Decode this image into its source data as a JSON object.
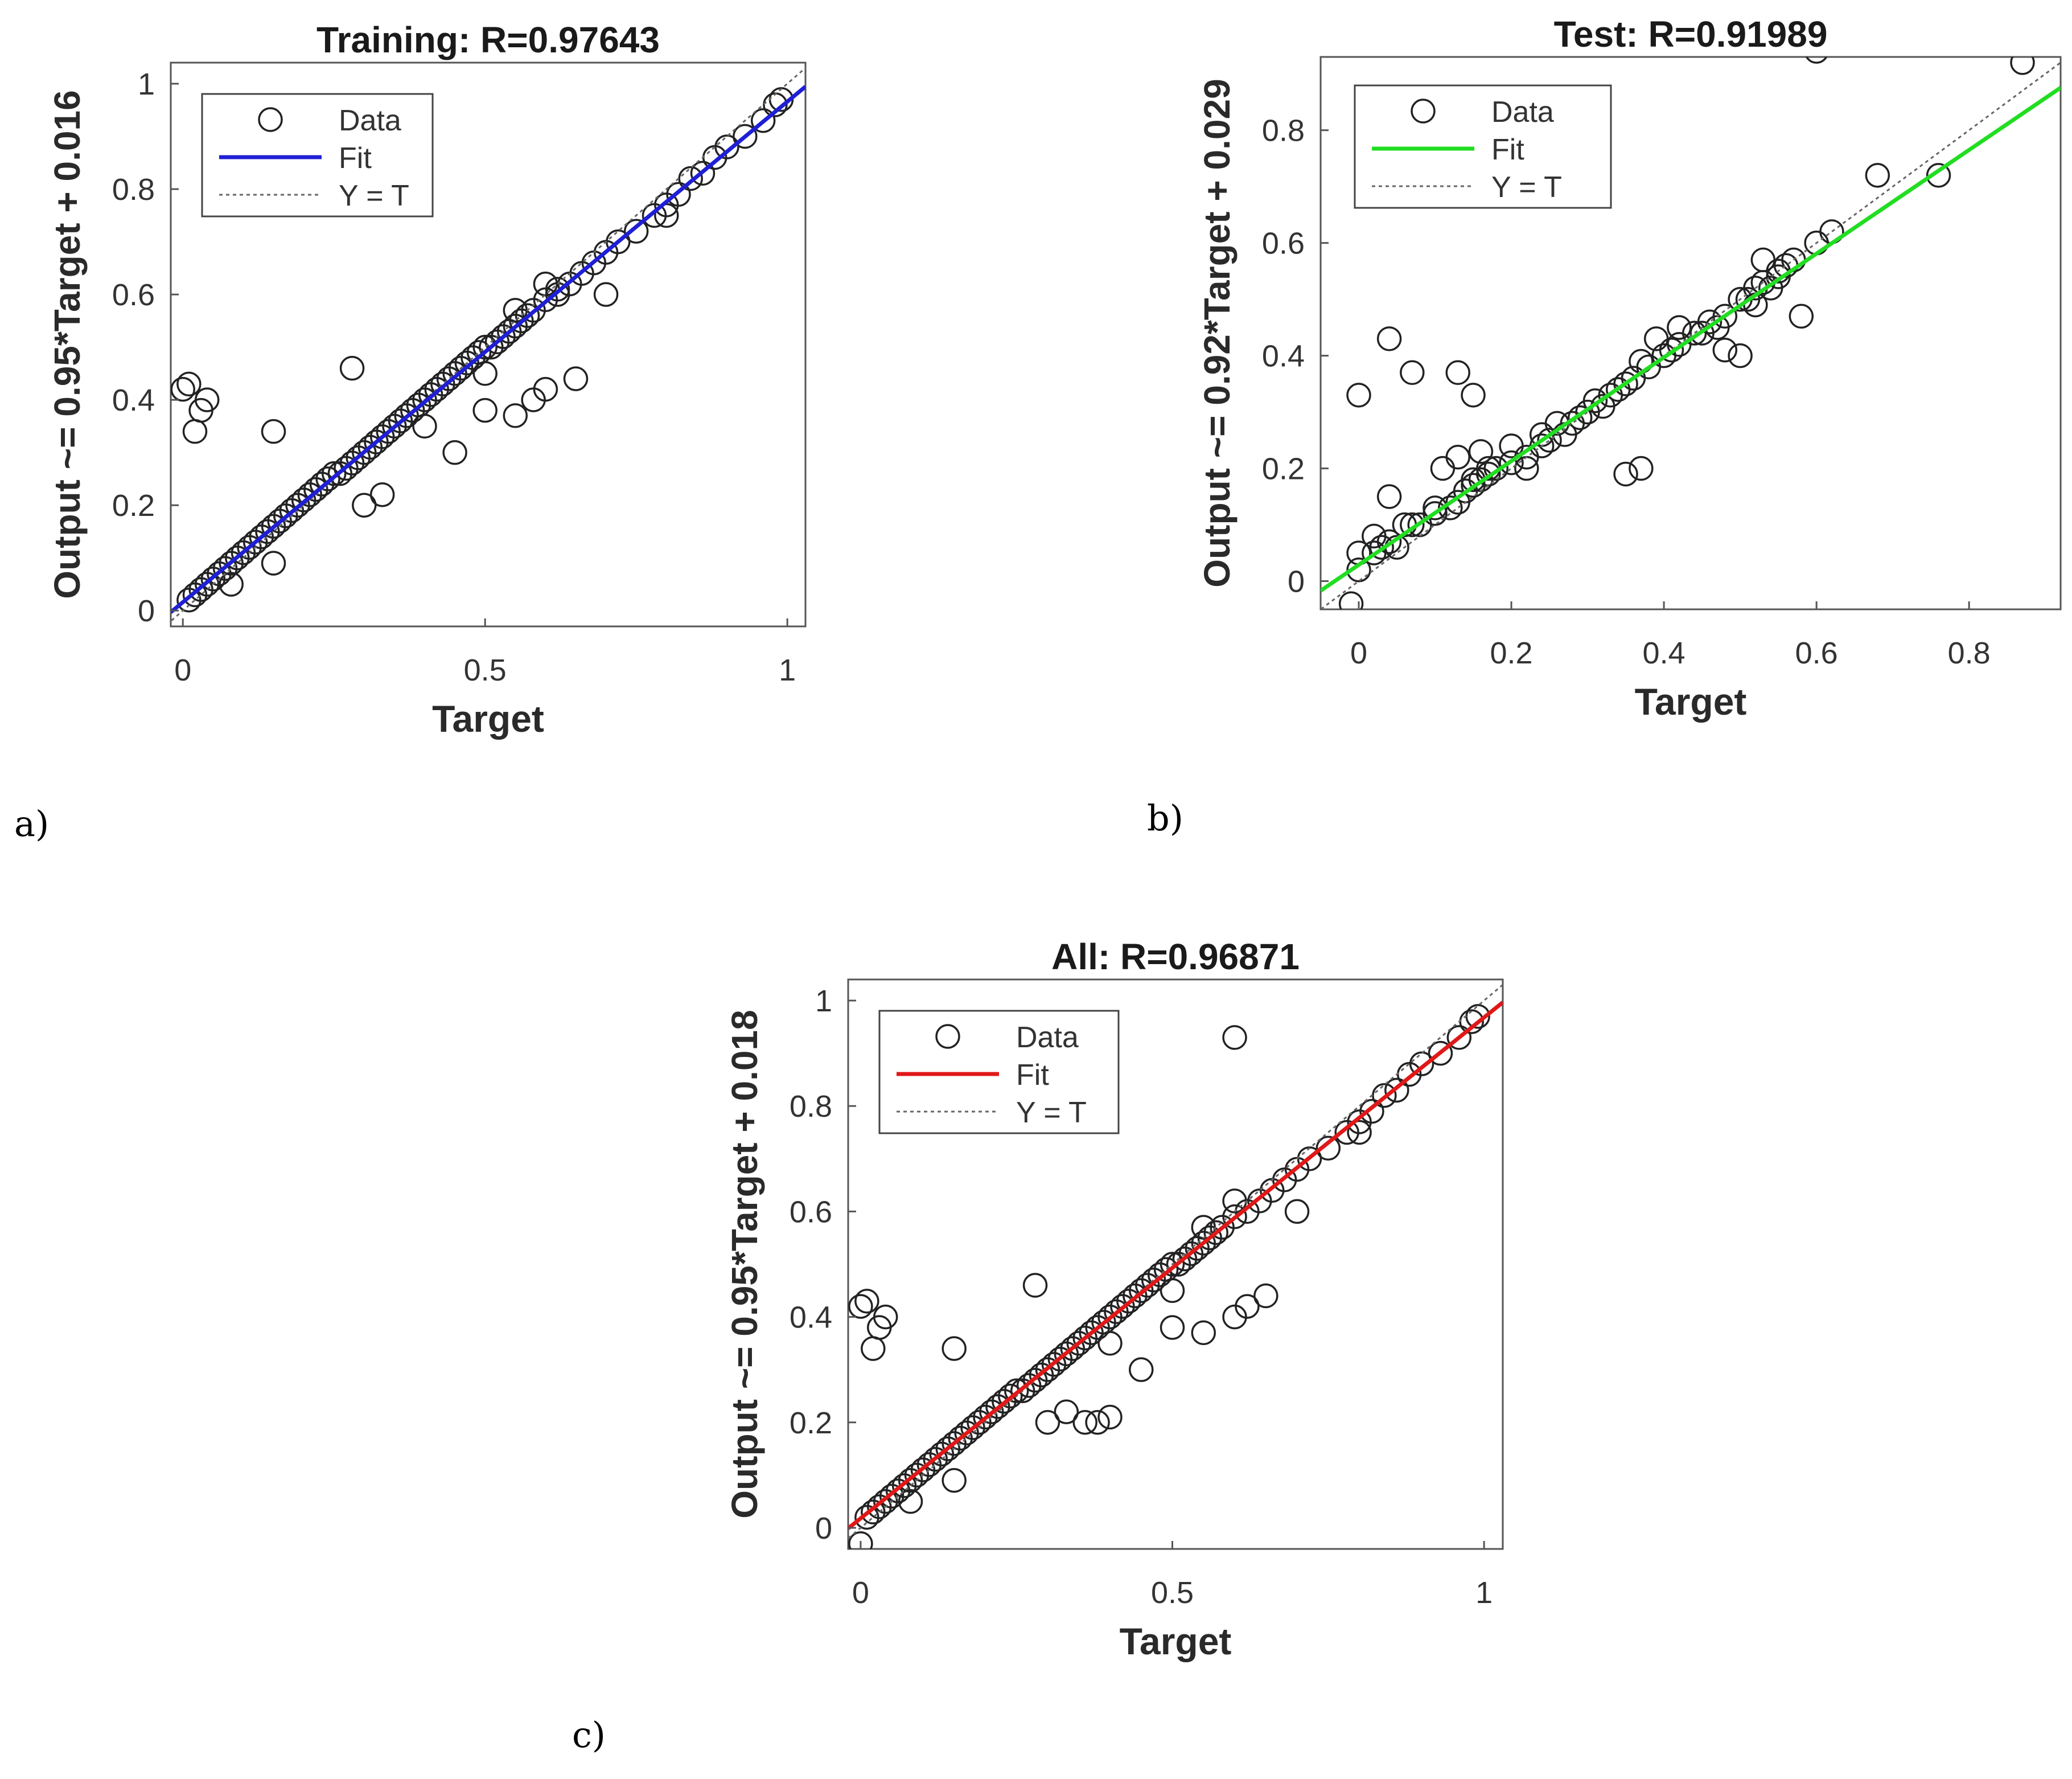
{
  "panel_labels": [
    "a)",
    "b)",
    "c)"
  ],
  "legend_labels": {
    "data": "Data",
    "fit": "Fit",
    "yt": "Y = T"
  },
  "chart_data": [
    {
      "type": "scatter",
      "title": "Training: R=0.97643",
      "xlabel": "Target",
      "ylabel": "Output ~= 0.95*Target + 0.016",
      "xlim": [
        -0.02,
        1.03
      ],
      "ylim": [
        -0.03,
        1.04
      ],
      "xticks": [
        0,
        0.5,
        1
      ],
      "xtick_labels": [
        "0",
        "0.5",
        "1"
      ],
      "yticks": [
        0,
        0.2,
        0.4,
        0.6,
        0.8,
        1
      ],
      "ytick_labels": [
        "0",
        "0.2",
        "0.4",
        "0.6",
        "0.8",
        "1"
      ],
      "fit": {
        "slope": 0.95,
        "intercept": 0.016,
        "color": "#1f1fd6"
      },
      "series": [
        {
          "name": "Data",
          "x": [
            0.01,
            0.02,
            0.03,
            0.04,
            0.05,
            0.06,
            0.07,
            0.08,
            0.09,
            0.1,
            0.11,
            0.12,
            0.13,
            0.14,
            0.15,
            0.16,
            0.17,
            0.18,
            0.19,
            0.2,
            0.21,
            0.22,
            0.23,
            0.24,
            0.25,
            0.26,
            0.27,
            0.28,
            0.29,
            0.3,
            0.31,
            0.32,
            0.33,
            0.34,
            0.35,
            0.36,
            0.37,
            0.38,
            0.39,
            0.4,
            0.41,
            0.42,
            0.43,
            0.44,
            0.45,
            0.46,
            0.47,
            0.48,
            0.49,
            0.5,
            0.51,
            0.52,
            0.53,
            0.54,
            0.55,
            0.56,
            0.57,
            0.58,
            0.6,
            0.62,
            0.64,
            0.66,
            0.68,
            0.7,
            0.72,
            0.75,
            0.78,
            0.8,
            0.82,
            0.84,
            0.86,
            0.88,
            0.9,
            0.93,
            0.96,
            0.98,
            0.99,
            0.0,
            0.01,
            0.02,
            0.03,
            0.04,
            0.15,
            0.28,
            0.33,
            0.45,
            0.5,
            0.55,
            0.58,
            0.6,
            0.62,
            0.65,
            0.7,
            0.8,
            0.08,
            0.15,
            0.3,
            0.4,
            0.5,
            0.55,
            0.6
          ],
          "y": [
            0.02,
            0.03,
            0.04,
            0.05,
            0.06,
            0.07,
            0.08,
            0.09,
            0.1,
            0.11,
            0.12,
            0.13,
            0.14,
            0.15,
            0.16,
            0.17,
            0.18,
            0.19,
            0.2,
            0.21,
            0.22,
            0.23,
            0.24,
            0.25,
            0.26,
            0.26,
            0.27,
            0.28,
            0.29,
            0.3,
            0.31,
            0.32,
            0.33,
            0.34,
            0.35,
            0.36,
            0.37,
            0.38,
            0.39,
            0.4,
            0.41,
            0.42,
            0.43,
            0.44,
            0.45,
            0.46,
            0.47,
            0.48,
            0.49,
            0.5,
            0.5,
            0.51,
            0.52,
            0.53,
            0.54,
            0.55,
            0.56,
            0.57,
            0.59,
            0.6,
            0.62,
            0.64,
            0.66,
            0.68,
            0.7,
            0.72,
            0.75,
            0.77,
            0.79,
            0.82,
            0.83,
            0.86,
            0.88,
            0.9,
            0.93,
            0.96,
            0.97,
            0.42,
            0.43,
            0.34,
            0.38,
            0.4,
            0.34,
            0.46,
            0.22,
            0.3,
            0.38,
            0.37,
            0.4,
            0.42,
            0.61,
            0.44,
            0.6,
            0.75,
            0.05,
            0.09,
            0.2,
            0.35,
            0.45,
            0.57,
            0.62
          ]
        }
      ]
    },
    {
      "type": "scatter",
      "title": "Test: R=0.91989",
      "xlabel": "Target",
      "ylabel": "Output ~= 0.92*Target + 0.029",
      "xlim": [
        -0.05,
        0.92
      ],
      "ylim": [
        -0.05,
        0.93
      ],
      "xticks": [
        0,
        0.2,
        0.4,
        0.6,
        0.8
      ],
      "xtick_labels": [
        "0",
        "0.2",
        "0.4",
        "0.6",
        "0.8"
      ],
      "yticks": [
        0,
        0.2,
        0.4,
        0.6,
        0.8
      ],
      "ytick_labels": [
        "0",
        "0.2",
        "0.4",
        "0.6",
        "0.8"
      ],
      "fit": {
        "slope": 0.92,
        "intercept": 0.029,
        "color": "#22dd22"
      },
      "series": [
        {
          "name": "Data",
          "x": [
            0.0,
            0.02,
            0.03,
            0.04,
            0.05,
            0.06,
            0.08,
            0.1,
            0.12,
            0.13,
            0.14,
            0.15,
            0.16,
            0.17,
            0.18,
            0.2,
            0.22,
            0.24,
            0.25,
            0.27,
            0.28,
            0.3,
            0.32,
            0.33,
            0.35,
            0.36,
            0.38,
            0.4,
            0.41,
            0.42,
            0.44,
            0.45,
            0.47,
            0.48,
            0.5,
            0.51,
            0.52,
            0.53,
            0.55,
            0.56,
            0.57,
            0.6,
            0.62,
            0.68,
            0.76,
            0.6,
            0.87,
            0.0,
            0.02,
            0.04,
            0.07,
            0.1,
            0.11,
            0.13,
            0.15,
            0.16,
            0.17,
            0.2,
            0.22,
            0.24,
            0.26,
            0.29,
            0.31,
            0.34,
            0.37,
            0.39,
            0.42,
            0.46,
            0.48,
            0.5,
            0.52,
            0.54,
            0.55,
            0.13,
            0.15,
            0.04,
            0.07,
            0.0,
            0.35,
            0.37,
            0.53,
            0.58,
            -0.01
          ],
          "y": [
            0.05,
            0.05,
            0.06,
            0.07,
            0.06,
            0.1,
            0.1,
            0.12,
            0.13,
            0.14,
            0.16,
            0.17,
            0.18,
            0.19,
            0.2,
            0.21,
            0.22,
            0.24,
            0.25,
            0.26,
            0.28,
            0.3,
            0.31,
            0.33,
            0.35,
            0.36,
            0.38,
            0.4,
            0.41,
            0.42,
            0.44,
            0.44,
            0.45,
            0.47,
            0.5,
            0.5,
            0.52,
            0.53,
            0.55,
            0.56,
            0.57,
            0.6,
            0.62,
            0.72,
            0.72,
            0.94,
            0.92,
            0.02,
            0.08,
            0.15,
            0.1,
            0.13,
            0.2,
            0.22,
            0.18,
            0.23,
            0.2,
            0.24,
            0.2,
            0.26,
            0.28,
            0.29,
            0.32,
            0.34,
            0.39,
            0.43,
            0.45,
            0.46,
            0.41,
            0.4,
            0.49,
            0.52,
            0.54,
            0.37,
            0.33,
            0.43,
            0.37,
            0.33,
            0.19,
            0.2,
            0.57,
            0.47,
            -0.04
          ]
        }
      ]
    },
    {
      "type": "scatter",
      "title": "All: R=0.96871",
      "xlabel": "Target",
      "ylabel": "Output ~= 0.95*Target + 0.018",
      "xlim": [
        -0.02,
        1.03
      ],
      "ylim": [
        -0.04,
        1.04
      ],
      "xticks": [
        0,
        0.5,
        1
      ],
      "xtick_labels": [
        "0",
        "0.5",
        "1"
      ],
      "yticks": [
        0,
        0.2,
        0.4,
        0.6,
        0.8,
        1
      ],
      "ytick_labels": [
        "0",
        "0.2",
        "0.4",
        "0.6",
        "0.8",
        "1"
      ],
      "fit": {
        "slope": 0.95,
        "intercept": 0.018,
        "color": "#e01818"
      },
      "series": [
        {
          "name": "Data",
          "x": [
            0.01,
            0.02,
            0.03,
            0.04,
            0.05,
            0.06,
            0.07,
            0.08,
            0.09,
            0.1,
            0.11,
            0.12,
            0.13,
            0.14,
            0.15,
            0.16,
            0.17,
            0.18,
            0.19,
            0.2,
            0.21,
            0.22,
            0.23,
            0.24,
            0.25,
            0.26,
            0.27,
            0.28,
            0.29,
            0.3,
            0.31,
            0.32,
            0.33,
            0.34,
            0.35,
            0.36,
            0.37,
            0.38,
            0.39,
            0.4,
            0.41,
            0.42,
            0.43,
            0.44,
            0.45,
            0.46,
            0.47,
            0.48,
            0.49,
            0.5,
            0.51,
            0.52,
            0.53,
            0.54,
            0.55,
            0.56,
            0.57,
            0.58,
            0.6,
            0.62,
            0.64,
            0.66,
            0.68,
            0.7,
            0.72,
            0.75,
            0.78,
            0.8,
            0.82,
            0.84,
            0.86,
            0.88,
            0.9,
            0.93,
            0.96,
            0.98,
            0.99,
            0.0,
            0.01,
            0.02,
            0.03,
            0.04,
            0.15,
            0.28,
            0.33,
            0.45,
            0.5,
            0.55,
            0.6,
            0.62,
            0.65,
            0.6,
            0.7,
            0.8,
            0.36,
            0.38,
            0.4,
            0.08,
            0.15,
            0.3,
            0.4,
            0.5,
            0.55,
            0.6,
            0.0
          ],
          "y": [
            0.02,
            0.03,
            0.04,
            0.05,
            0.06,
            0.07,
            0.08,
            0.09,
            0.1,
            0.11,
            0.12,
            0.13,
            0.14,
            0.15,
            0.16,
            0.17,
            0.18,
            0.19,
            0.2,
            0.21,
            0.22,
            0.23,
            0.24,
            0.25,
            0.26,
            0.26,
            0.27,
            0.28,
            0.29,
            0.3,
            0.31,
            0.32,
            0.33,
            0.34,
            0.35,
            0.36,
            0.37,
            0.38,
            0.39,
            0.4,
            0.41,
            0.42,
            0.43,
            0.44,
            0.45,
            0.46,
            0.47,
            0.48,
            0.49,
            0.5,
            0.5,
            0.51,
            0.52,
            0.53,
            0.54,
            0.55,
            0.56,
            0.57,
            0.59,
            0.6,
            0.62,
            0.64,
            0.66,
            0.68,
            0.7,
            0.72,
            0.75,
            0.77,
            0.79,
            0.82,
            0.83,
            0.86,
            0.88,
            0.9,
            0.93,
            0.96,
            0.97,
            0.42,
            0.43,
            0.34,
            0.38,
            0.4,
            0.34,
            0.46,
            0.22,
            0.3,
            0.38,
            0.37,
            0.4,
            0.42,
            0.44,
            0.93,
            0.6,
            0.75,
            0.2,
            0.2,
            0.21,
            0.05,
            0.09,
            0.2,
            0.35,
            0.45,
            0.57,
            0.62,
            -0.03
          ]
        }
      ]
    }
  ]
}
